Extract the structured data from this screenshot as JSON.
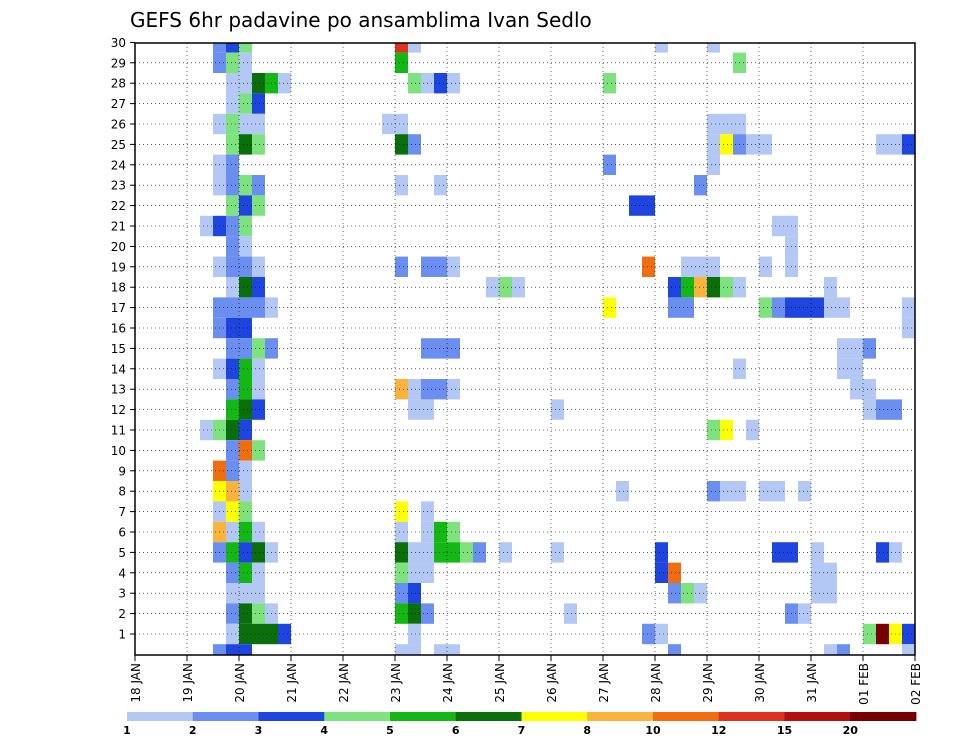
{
  "chart_data": {
    "type": "heatmap",
    "title": "GEFS 6hr padavine po ansamblima Ivan Sedlo",
    "x_ticks": [
      "18 JAN",
      "19 JAN",
      "20 JAN",
      "21 JAN",
      "22 JAN",
      "23 JAN",
      "24 JAN",
      "25 JAN",
      "26 JAN",
      "27 JAN",
      "28 JAN",
      "29 JAN",
      "30 JAN",
      "31 JAN",
      "01 FEB",
      "02 FEB"
    ],
    "y_ticks": [
      1,
      2,
      3,
      4,
      5,
      6,
      7,
      8,
      9,
      10,
      11,
      12,
      13,
      14,
      15,
      16,
      17,
      18,
      19,
      20,
      21,
      22,
      23,
      24,
      25,
      26,
      27,
      28,
      29,
      30
    ],
    "time_step_hours": 6,
    "colorbar": {
      "labels": [
        "1",
        "2",
        "3",
        "4",
        "5",
        "6",
        "7",
        "8",
        "10",
        "12",
        "15",
        "20"
      ],
      "colors": [
        "#b4c8f5",
        "#6a8ff0",
        "#1f45e0",
        "#7ee27e",
        "#14b814",
        "#0a6e0a",
        "#ffff00",
        "#fab43c",
        "#f06e0f",
        "#dc321e",
        "#b40f0f",
        "#780000"
      ]
    },
    "colors": [
      "#b4c8f5",
      "#6a8ff0",
      "#1f45e0",
      "#7ee27e",
      "#14b814",
      "#0a6e0a",
      "#ffff00",
      "#fab43c",
      "#f06e0f",
      "#dc321e",
      "#b40f0f",
      "#780000"
    ],
    "cells": [
      {
        "t": 6,
        "m": 30,
        "c": 2
      },
      {
        "t": 7,
        "m": 30,
        "c": 3
      },
      {
        "t": 8,
        "m": 30,
        "c": 4
      },
      {
        "t": 6,
        "m": 29,
        "c": 2
      },
      {
        "t": 7,
        "m": 29,
        "c": 4
      },
      {
        "t": 8,
        "m": 29,
        "c": 1
      },
      {
        "t": 7,
        "m": 28,
        "c": 1
      },
      {
        "t": 8,
        "m": 28,
        "c": 1
      },
      {
        "t": 9,
        "m": 28,
        "c": 6
      },
      {
        "t": 10,
        "m": 28,
        "c": 5
      },
      {
        "t": 11,
        "m": 28,
        "c": 1
      },
      {
        "t": 7,
        "m": 27,
        "c": 1
      },
      {
        "t": 8,
        "m": 27,
        "c": 4
      },
      {
        "t": 9,
        "m": 27,
        "c": 3
      },
      {
        "t": 6,
        "m": 26,
        "c": 1
      },
      {
        "t": 7,
        "m": 26,
        "c": 4
      },
      {
        "t": 8,
        "m": 26,
        "c": 1
      },
      {
        "t": 9,
        "m": 26,
        "c": 1
      },
      {
        "t": 7,
        "m": 25,
        "c": 4
      },
      {
        "t": 8,
        "m": 25,
        "c": 6
      },
      {
        "t": 9,
        "m": 25,
        "c": 4
      },
      {
        "t": 6,
        "m": 24,
        "c": 1
      },
      {
        "t": 7,
        "m": 24,
        "c": 2
      },
      {
        "t": 6,
        "m": 23,
        "c": 1
      },
      {
        "t": 7,
        "m": 23,
        "c": 2
      },
      {
        "t": 8,
        "m": 23,
        "c": 4
      },
      {
        "t": 9,
        "m": 23,
        "c": 2
      },
      {
        "t": 7,
        "m": 22,
        "c": 4
      },
      {
        "t": 8,
        "m": 22,
        "c": 3
      },
      {
        "t": 9,
        "m": 22,
        "c": 4
      },
      {
        "t": 5,
        "m": 21,
        "c": 1
      },
      {
        "t": 6,
        "m": 21,
        "c": 3
      },
      {
        "t": 7,
        "m": 21,
        "c": 2
      },
      {
        "t": 8,
        "m": 21,
        "c": 4
      },
      {
        "t": 7,
        "m": 20,
        "c": 2
      },
      {
        "t": 8,
        "m": 20,
        "c": 1
      },
      {
        "t": 6,
        "m": 19,
        "c": 1
      },
      {
        "t": 7,
        "m": 19,
        "c": 2
      },
      {
        "t": 8,
        "m": 19,
        "c": 2
      },
      {
        "t": 9,
        "m": 19,
        "c": 1
      },
      {
        "t": 7,
        "m": 18,
        "c": 1
      },
      {
        "t": 8,
        "m": 18,
        "c": 6
      },
      {
        "t": 9,
        "m": 18,
        "c": 3
      },
      {
        "t": 6,
        "m": 17,
        "c": 2
      },
      {
        "t": 7,
        "m": 17,
        "c": 2
      },
      {
        "t": 8,
        "m": 17,
        "c": 2
      },
      {
        "t": 9,
        "m": 17,
        "c": 2
      },
      {
        "t": 10,
        "m": 17,
        "c": 1
      },
      {
        "t": 6,
        "m": 16,
        "c": 2
      },
      {
        "t": 7,
        "m": 16,
        "c": 3
      },
      {
        "t": 8,
        "m": 16,
        "c": 3
      },
      {
        "t": 7,
        "m": 15,
        "c": 2
      },
      {
        "t": 8,
        "m": 15,
        "c": 2
      },
      {
        "t": 9,
        "m": 15,
        "c": 4
      },
      {
        "t": 10,
        "m": 15,
        "c": 2
      },
      {
        "t": 6,
        "m": 14,
        "c": 1
      },
      {
        "t": 7,
        "m": 14,
        "c": 3
      },
      {
        "t": 8,
        "m": 14,
        "c": 5
      },
      {
        "t": 9,
        "m": 14,
        "c": 1
      },
      {
        "t": 7,
        "m": 13,
        "c": 2
      },
      {
        "t": 8,
        "m": 13,
        "c": 5
      },
      {
        "t": 9,
        "m": 13,
        "c": 1
      },
      {
        "t": 7,
        "m": 12,
        "c": 5
      },
      {
        "t": 8,
        "m": 12,
        "c": 6
      },
      {
        "t": 9,
        "m": 12,
        "c": 3
      },
      {
        "t": 5,
        "m": 11,
        "c": 1
      },
      {
        "t": 6,
        "m": 11,
        "c": 4
      },
      {
        "t": 7,
        "m": 11,
        "c": 6
      },
      {
        "t": 8,
        "m": 11,
        "c": 3
      },
      {
        "t": 7,
        "m": 10,
        "c": 2
      },
      {
        "t": 8,
        "m": 10,
        "c": 9
      },
      {
        "t": 9,
        "m": 10,
        "c": 4
      },
      {
        "t": 6,
        "m": 9,
        "c": 9
      },
      {
        "t": 7,
        "m": 9,
        "c": 2
      },
      {
        "t": 8,
        "m": 9,
        "c": 1
      },
      {
        "t": 6,
        "m": 8,
        "c": 7
      },
      {
        "t": 7,
        "m": 8,
        "c": 8
      },
      {
        "t": 8,
        "m": 8,
        "c": 1
      },
      {
        "t": 6,
        "m": 7,
        "c": 1
      },
      {
        "t": 7,
        "m": 7,
        "c": 7
      },
      {
        "t": 8,
        "m": 7,
        "c": 4
      },
      {
        "t": 6,
        "m": 6,
        "c": 8
      },
      {
        "t": 7,
        "m": 6,
        "c": 1
      },
      {
        "t": 8,
        "m": 6,
        "c": 5
      },
      {
        "t": 9,
        "m": 6,
        "c": 1
      },
      {
        "t": 6,
        "m": 5,
        "c": 2
      },
      {
        "t": 7,
        "m": 5,
        "c": 5
      },
      {
        "t": 8,
        "m": 5,
        "c": 3
      },
      {
        "t": 9,
        "m": 5,
        "c": 6
      },
      {
        "t": 10,
        "m": 5,
        "c": 1
      },
      {
        "t": 7,
        "m": 4,
        "c": 2
      },
      {
        "t": 8,
        "m": 4,
        "c": 5
      },
      {
        "t": 9,
        "m": 4,
        "c": 1
      },
      {
        "t": 7,
        "m": 3,
        "c": 1
      },
      {
        "t": 8,
        "m": 3,
        "c": 1
      },
      {
        "t": 9,
        "m": 3,
        "c": 1
      },
      {
        "t": 7,
        "m": 2,
        "c": 2
      },
      {
        "t": 8,
        "m": 2,
        "c": 6
      },
      {
        "t": 9,
        "m": 2,
        "c": 4
      },
      {
        "t": 10,
        "m": 2,
        "c": 1
      },
      {
        "t": 7,
        "m": 1,
        "c": 1
      },
      {
        "t": 8,
        "m": 1,
        "c": 6
      },
      {
        "t": 9,
        "m": 1,
        "c": 6
      },
      {
        "t": 10,
        "m": 1,
        "c": 6
      },
      {
        "t": 11,
        "m": 1,
        "c": 3
      },
      {
        "t": 20,
        "m": 30,
        "c": 10
      },
      {
        "t": 21,
        "m": 30,
        "c": 1
      },
      {
        "t": 20,
        "m": 29,
        "c": 5
      },
      {
        "t": 21,
        "m": 28,
        "c": 4
      },
      {
        "t": 22,
        "m": 28,
        "c": 1
      },
      {
        "t": 23,
        "m": 28,
        "c": 3
      },
      {
        "t": 24,
        "m": 28,
        "c": 1
      },
      {
        "t": 19,
        "m": 26,
        "c": 1
      },
      {
        "t": 20,
        "m": 26,
        "c": 1
      },
      {
        "t": 20,
        "m": 25,
        "c": 6
      },
      {
        "t": 21,
        "m": 25,
        "c": 2
      },
      {
        "t": 20,
        "m": 23,
        "c": 1
      },
      {
        "t": 23,
        "m": 23,
        "c": 1
      },
      {
        "t": 20,
        "m": 19,
        "c": 2
      },
      {
        "t": 22,
        "m": 19,
        "c": 2
      },
      {
        "t": 23,
        "m": 19,
        "c": 2
      },
      {
        "t": 24,
        "m": 19,
        "c": 1
      },
      {
        "t": 27,
        "m": 18,
        "c": 1
      },
      {
        "t": 28,
        "m": 18,
        "c": 4
      },
      {
        "t": 29,
        "m": 18,
        "c": 1
      },
      {
        "t": 22,
        "m": 15,
        "c": 2
      },
      {
        "t": 23,
        "m": 15,
        "c": 2
      },
      {
        "t": 24,
        "m": 15,
        "c": 2
      },
      {
        "t": 20,
        "m": 13,
        "c": 8
      },
      {
        "t": 21,
        "m": 13,
        "c": 1
      },
      {
        "t": 22,
        "m": 13,
        "c": 2
      },
      {
        "t": 23,
        "m": 13,
        "c": 2
      },
      {
        "t": 24,
        "m": 13,
        "c": 1
      },
      {
        "t": 21,
        "m": 12,
        "c": 1
      },
      {
        "t": 22,
        "m": 12,
        "c": 1
      },
      {
        "t": 20,
        "m": 7,
        "c": 7
      },
      {
        "t": 22,
        "m": 7,
        "c": 1
      },
      {
        "t": 20,
        "m": 6,
        "c": 1
      },
      {
        "t": 22,
        "m": 6,
        "c": 1
      },
      {
        "t": 23,
        "m": 6,
        "c": 5
      },
      {
        "t": 24,
        "m": 6,
        "c": 4
      },
      {
        "t": 20,
        "m": 5,
        "c": 6
      },
      {
        "t": 21,
        "m": 5,
        "c": 1
      },
      {
        "t": 22,
        "m": 5,
        "c": 1
      },
      {
        "t": 23,
        "m": 5,
        "c": 5
      },
      {
        "t": 24,
        "m": 5,
        "c": 5
      },
      {
        "t": 25,
        "m": 5,
        "c": 4
      },
      {
        "t": 26,
        "m": 5,
        "c": 2
      },
      {
        "t": 28,
        "m": 5,
        "c": 1
      },
      {
        "t": 20,
        "m": 4,
        "c": 4
      },
      {
        "t": 21,
        "m": 4,
        "c": 1
      },
      {
        "t": 22,
        "m": 4,
        "c": 1
      },
      {
        "t": 20,
        "m": 3,
        "c": 2
      },
      {
        "t": 21,
        "m": 3,
        "c": 3
      },
      {
        "t": 20,
        "m": 2,
        "c": 5
      },
      {
        "t": 21,
        "m": 2,
        "c": 6
      },
      {
        "t": 22,
        "m": 2,
        "c": 2
      },
      {
        "t": 21,
        "m": 1,
        "c": 1
      },
      {
        "t": 32,
        "m": 12,
        "c": 1
      },
      {
        "t": 32,
        "m": 5,
        "c": 1
      },
      {
        "t": 33,
        "m": 2,
        "c": 1
      },
      {
        "t": 36,
        "m": 28,
        "c": 4
      },
      {
        "t": 36,
        "m": 24,
        "c": 2
      },
      {
        "t": 38,
        "m": 22,
        "c": 3
      },
      {
        "t": 39,
        "m": 22,
        "c": 3
      },
      {
        "t": 39,
        "m": 19,
        "c": 9
      },
      {
        "t": 36,
        "m": 17,
        "c": 7
      },
      {
        "t": 37,
        "m": 8,
        "c": 1
      },
      {
        "t": 39,
        "m": 1,
        "c": 2
      },
      {
        "t": 40,
        "m": 1,
        "c": 1
      },
      {
        "t": 40,
        "m": 5,
        "c": 3
      },
      {
        "t": 40,
        "m": 4,
        "c": 3
      },
      {
        "t": 41,
        "m": 4,
        "c": 9
      },
      {
        "t": 41,
        "m": 3,
        "c": 2
      },
      {
        "t": 42,
        "m": 3,
        "c": 4
      },
      {
        "t": 43,
        "m": 3,
        "c": 1
      },
      {
        "t": 40,
        "m": 30,
        "c": 1
      },
      {
        "t": 44,
        "m": 30,
        "c": 1
      },
      {
        "t": 46,
        "m": 29,
        "c": 4
      },
      {
        "t": 44,
        "m": 26,
        "c": 1
      },
      {
        "t": 45,
        "m": 26,
        "c": 1
      },
      {
        "t": 46,
        "m": 26,
        "c": 1
      },
      {
        "t": 44,
        "m": 25,
        "c": 1
      },
      {
        "t": 45,
        "m": 25,
        "c": 7
      },
      {
        "t": 46,
        "m": 25,
        "c": 2
      },
      {
        "t": 47,
        "m": 25,
        "c": 1
      },
      {
        "t": 48,
        "m": 25,
        "c": 1
      },
      {
        "t": 44,
        "m": 24,
        "c": 1
      },
      {
        "t": 43,
        "m": 23,
        "c": 2
      },
      {
        "t": 42,
        "m": 19,
        "c": 1
      },
      {
        "t": 43,
        "m": 19,
        "c": 1
      },
      {
        "t": 44,
        "m": 19,
        "c": 1
      },
      {
        "t": 48,
        "m": 19,
        "c": 1
      },
      {
        "t": 50,
        "m": 19,
        "c": 1
      },
      {
        "t": 41,
        "m": 18,
        "c": 3
      },
      {
        "t": 42,
        "m": 18,
        "c": 5
      },
      {
        "t": 43,
        "m": 18,
        "c": 8
      },
      {
        "t": 44,
        "m": 18,
        "c": 6
      },
      {
        "t": 45,
        "m": 18,
        "c": 4
      },
      {
        "t": 46,
        "m": 18,
        "c": 1
      },
      {
        "t": 53,
        "m": 18,
        "c": 1
      },
      {
        "t": 41,
        "m": 17,
        "c": 2
      },
      {
        "t": 42,
        "m": 17,
        "c": 2
      },
      {
        "t": 48,
        "m": 17,
        "c": 4
      },
      {
        "t": 49,
        "m": 17,
        "c": 2
      },
      {
        "t": 50,
        "m": 17,
        "c": 3
      },
      {
        "t": 51,
        "m": 17,
        "c": 3
      },
      {
        "t": 52,
        "m": 17,
        "c": 3
      },
      {
        "t": 53,
        "m": 17,
        "c": 1
      },
      {
        "t": 54,
        "m": 17,
        "c": 1
      },
      {
        "t": 46,
        "m": 14,
        "c": 1
      },
      {
        "t": 44,
        "m": 11,
        "c": 4
      },
      {
        "t": 45,
        "m": 11,
        "c": 7
      },
      {
        "t": 47,
        "m": 11,
        "c": 1
      },
      {
        "t": 44,
        "m": 8,
        "c": 2
      },
      {
        "t": 45,
        "m": 8,
        "c": 1
      },
      {
        "t": 46,
        "m": 8,
        "c": 1
      },
      {
        "t": 48,
        "m": 8,
        "c": 1
      },
      {
        "t": 49,
        "m": 8,
        "c": 1
      },
      {
        "t": 51,
        "m": 8,
        "c": 1
      },
      {
        "t": 49,
        "m": 21,
        "c": 1
      },
      {
        "t": 50,
        "m": 21,
        "c": 1
      },
      {
        "t": 50,
        "m": 20,
        "c": 1
      },
      {
        "t": 49,
        "m": 5,
        "c": 3
      },
      {
        "t": 50,
        "m": 5,
        "c": 3
      },
      {
        "t": 52,
        "m": 5,
        "c": 1
      },
      {
        "t": 52,
        "m": 4,
        "c": 1
      },
      {
        "t": 53,
        "m": 4,
        "c": 1
      },
      {
        "t": 52,
        "m": 3,
        "c": 1
      },
      {
        "t": 53,
        "m": 3,
        "c": 1
      },
      {
        "t": 50,
        "m": 2,
        "c": 2
      },
      {
        "t": 51,
        "m": 2,
        "c": 1
      },
      {
        "t": 54,
        "m": 15,
        "c": 1
      },
      {
        "t": 55,
        "m": 15,
        "c": 1
      },
      {
        "t": 56,
        "m": 15,
        "c": 2
      },
      {
        "t": 54,
        "m": 14,
        "c": 1
      },
      {
        "t": 55,
        "m": 14,
        "c": 1
      },
      {
        "t": 55,
        "m": 13,
        "c": 1
      },
      {
        "t": 56,
        "m": 13,
        "c": 1
      },
      {
        "t": 56,
        "m": 12,
        "c": 1
      },
      {
        "t": 57,
        "m": 12,
        "c": 2
      },
      {
        "t": 58,
        "m": 12,
        "c": 2
      },
      {
        "t": 57,
        "m": 25,
        "c": 1
      },
      {
        "t": 58,
        "m": 25,
        "c": 1
      },
      {
        "t": 59,
        "m": 25,
        "c": 3
      },
      {
        "t": 59,
        "m": 17,
        "c": 1
      },
      {
        "t": 60,
        "m": 17,
        "c": 1
      },
      {
        "t": 61,
        "m": 17,
        "c": 2
      },
      {
        "t": 59,
        "m": 16,
        "c": 1
      },
      {
        "t": 61,
        "m": 16,
        "c": 1
      },
      {
        "t": 60,
        "m": 15,
        "c": 2
      },
      {
        "t": 61,
        "m": 15,
        "c": 2
      },
      {
        "t": 60,
        "m": 11,
        "c": 1
      },
      {
        "t": 61,
        "m": 11,
        "c": 1
      },
      {
        "t": 60,
        "m": 7,
        "c": 9
      },
      {
        "t": 61,
        "m": 7,
        "c": 5
      },
      {
        "t": 57,
        "m": 5,
        "c": 3
      },
      {
        "t": 58,
        "m": 5,
        "c": 1
      },
      {
        "t": 61,
        "m": 4,
        "c": 3
      },
      {
        "t": 56,
        "m": 1,
        "c": 4
      },
      {
        "t": 57,
        "m": 1,
        "c": 12
      },
      {
        "t": 58,
        "m": 1,
        "c": 7
      },
      {
        "t": 59,
        "m": 1,
        "c": 3
      },
      {
        "t": 53,
        "m": 0,
        "c": 1
      },
      {
        "t": 54,
        "m": 0,
        "c": 2
      },
      {
        "t": 59,
        "m": 0,
        "c": 1
      },
      {
        "t": 60,
        "m": 0,
        "c": 4
      },
      {
        "t": 41,
        "m": 0,
        "c": 2
      },
      {
        "t": 6,
        "m": 0,
        "c": 2
      },
      {
        "t": 7,
        "m": 0,
        "c": 3
      },
      {
        "t": 8,
        "m": 0,
        "c": 3
      },
      {
        "t": 20,
        "m": 0,
        "c": 1
      },
      {
        "t": 21,
        "m": 0,
        "c": 1
      },
      {
        "t": 23,
        "m": 0,
        "c": 1
      },
      {
        "t": 24,
        "m": 0,
        "c": 1
      }
    ]
  }
}
